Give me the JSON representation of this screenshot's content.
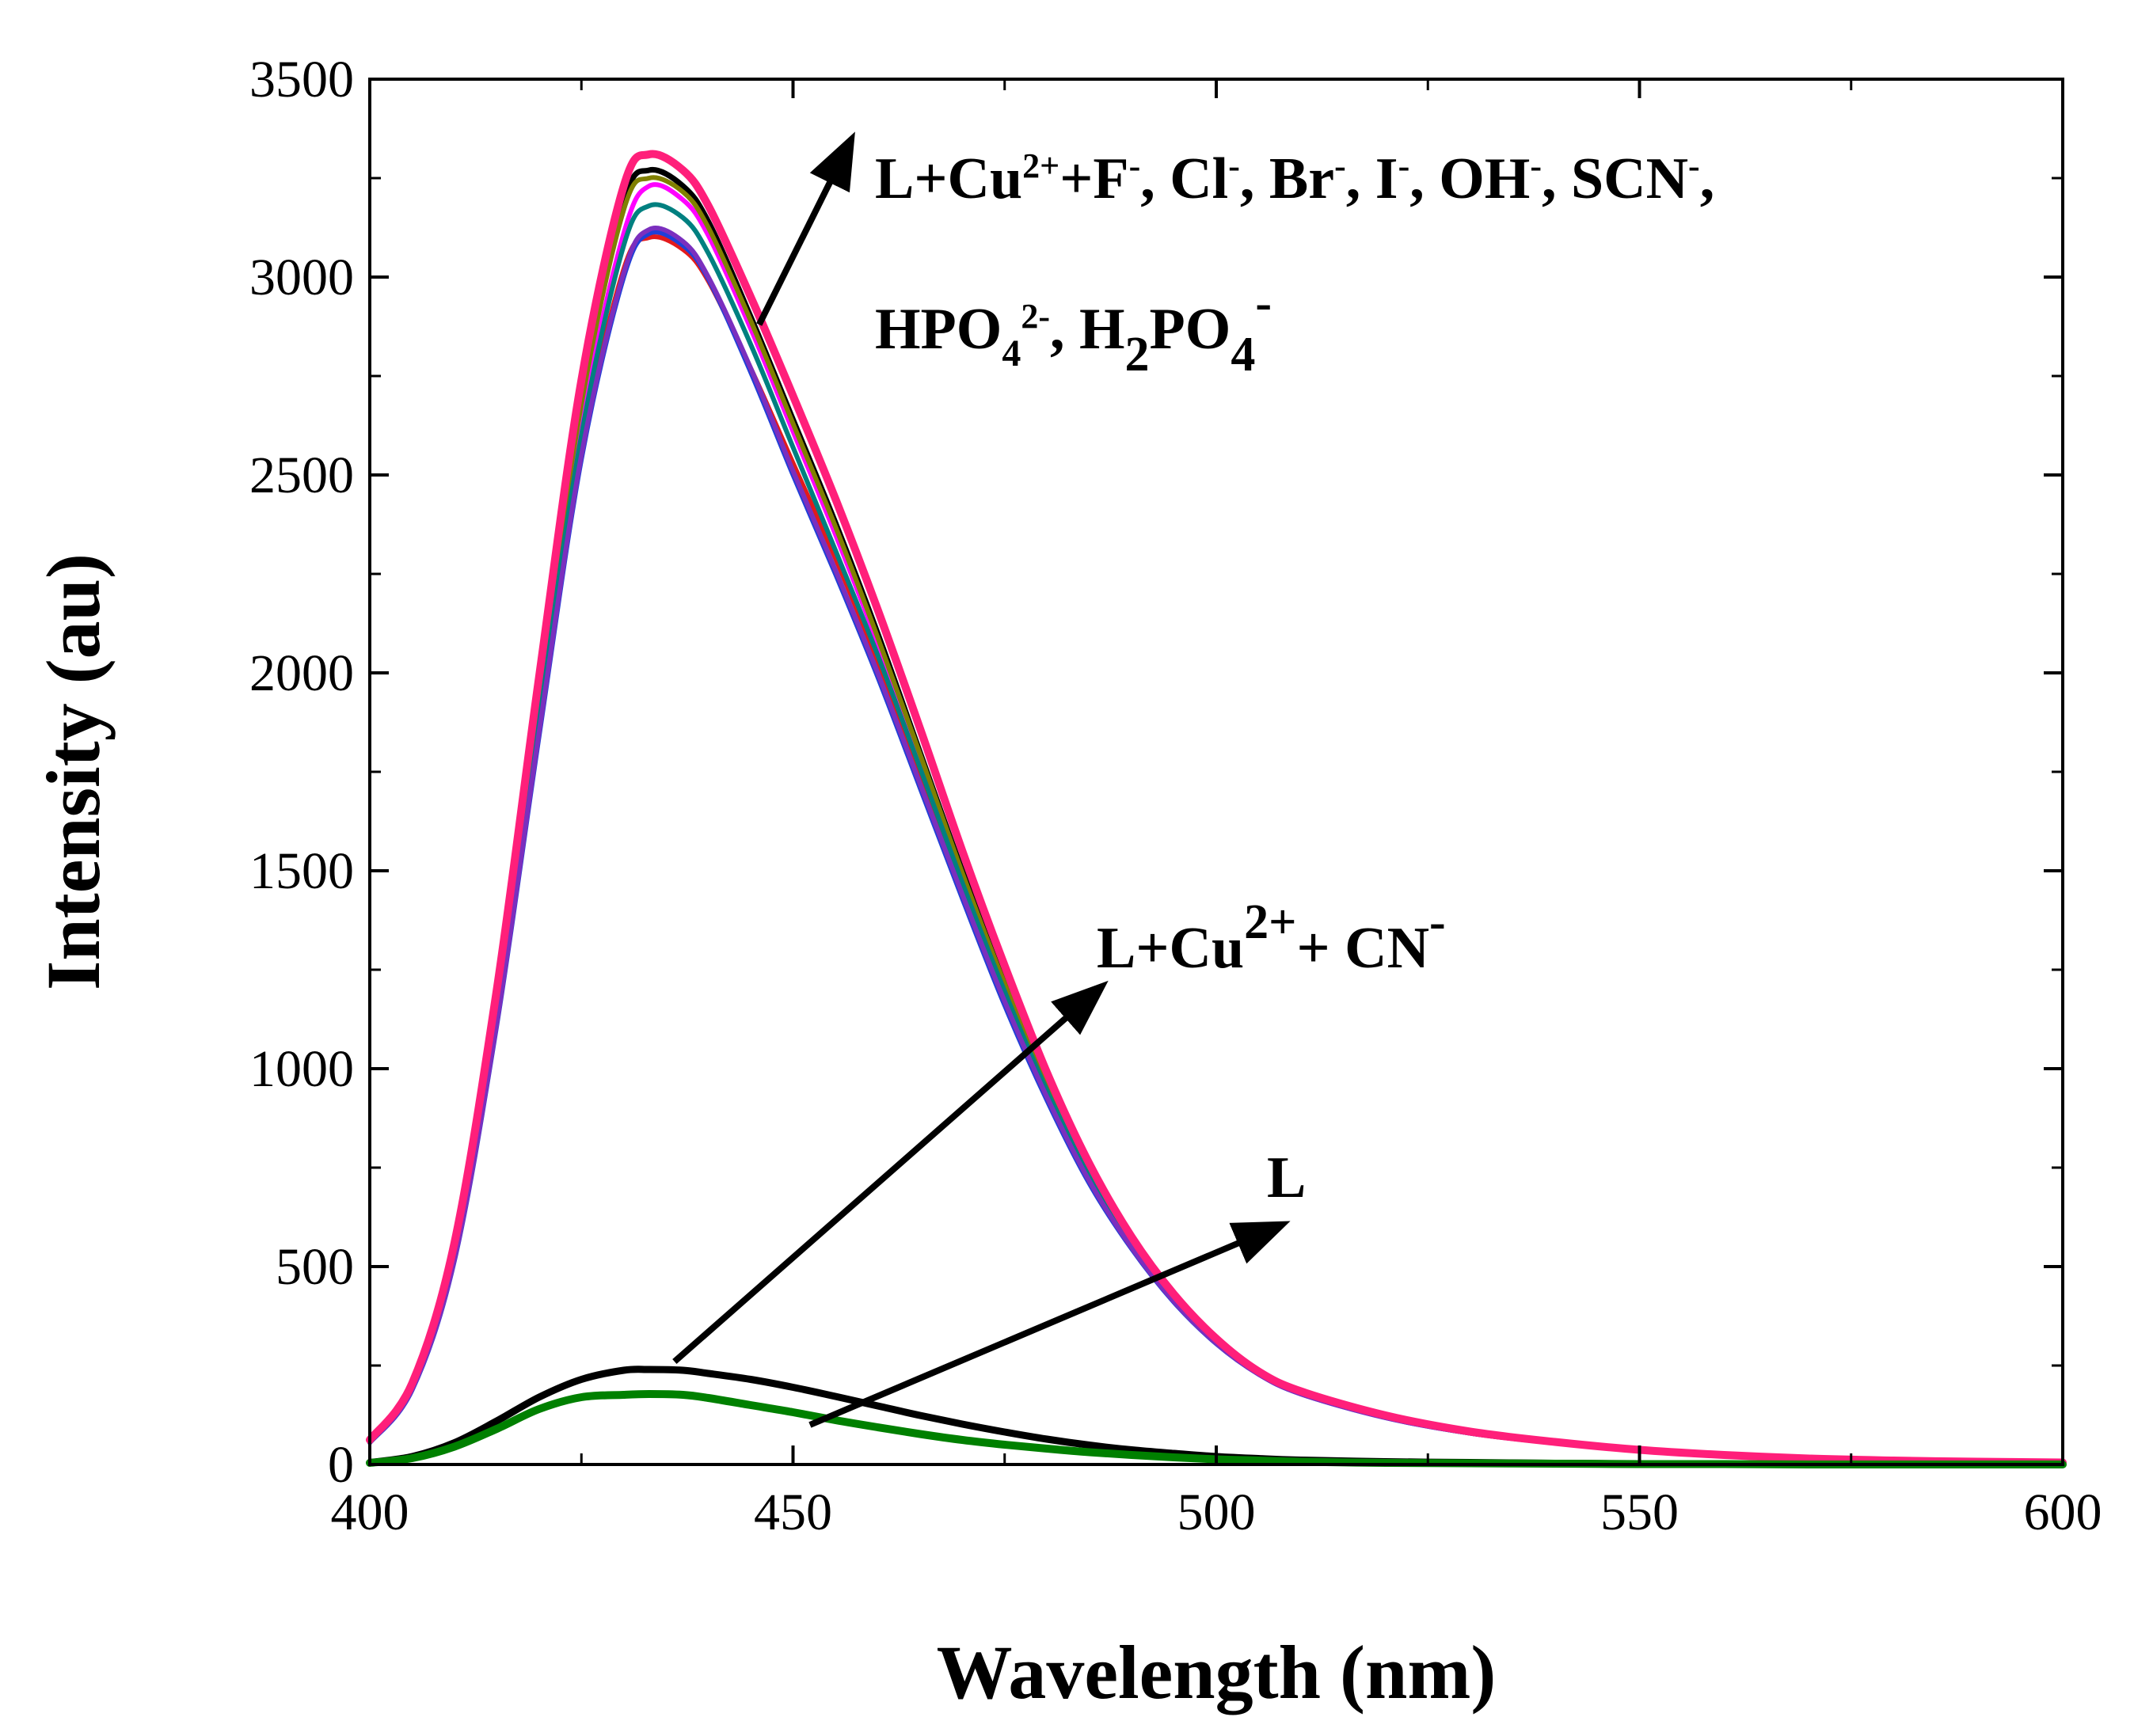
{
  "chart_data": {
    "type": "line",
    "title": "",
    "xlabel": "Wavelength (nm)",
    "ylabel": "Intensity (au)",
    "xlim": [
      400,
      600
    ],
    "ylim": [
      0,
      3500
    ],
    "xticks": [
      400,
      450,
      500,
      550,
      600
    ],
    "yticks": [
      0,
      500,
      1000,
      1500,
      2000,
      2500,
      3000,
      3500
    ],
    "series": [
      {
        "name": "L+Cu2++F-",
        "color": "#000000",
        "width": 7,
        "x": [
          400,
          405,
          410,
          415,
          420,
          425,
          430,
          433,
          437,
          440,
          445,
          450,
          455,
          460,
          465,
          470,
          475,
          480,
          485,
          490,
          495,
          500,
          505,
          510,
          520,
          530,
          540,
          550,
          560,
          570,
          580,
          590,
          600
        ],
        "y": [
          60,
          200,
          550,
          1180,
          1960,
          2700,
          3190,
          3270,
          3230,
          3140,
          2900,
          2640,
          2380,
          2100,
          1800,
          1500,
          1220,
          960,
          740,
          560,
          420,
          310,
          230,
          180,
          120,
          80,
          55,
          35,
          22,
          14,
          9,
          6,
          4
        ]
      },
      {
        "name": "L+Cu2++Cl-",
        "color": "#e31a1c",
        "width": 6,
        "x": [
          400,
          405,
          410,
          415,
          420,
          425,
          430,
          433,
          437,
          440,
          445,
          450,
          455,
          460,
          465,
          470,
          475,
          480,
          485,
          490,
          495,
          500,
          505,
          510,
          520,
          530,
          540,
          550,
          560,
          570,
          580,
          590,
          600
        ],
        "y": [
          55,
          190,
          520,
          1120,
          1860,
          2560,
          3020,
          3100,
          3070,
          2990,
          2770,
          2530,
          2290,
          2030,
          1750,
          1460,
          1190,
          940,
          730,
          560,
          420,
          310,
          230,
          180,
          120,
          80,
          55,
          35,
          22,
          14,
          9,
          6,
          4
        ]
      },
      {
        "name": "L+Cu2++Br-",
        "color": "#1f3fd8",
        "width": 6,
        "x": [
          400,
          405,
          410,
          415,
          420,
          425,
          430,
          433,
          437,
          440,
          445,
          450,
          455,
          460,
          465,
          470,
          475,
          480,
          485,
          490,
          495,
          500,
          505,
          510,
          520,
          530,
          540,
          550,
          560,
          570,
          580,
          590,
          600
        ],
        "y": [
          55,
          188,
          515,
          1110,
          1840,
          2540,
          3000,
          3110,
          3080,
          2995,
          2760,
          2500,
          2250,
          1990,
          1710,
          1430,
          1160,
          920,
          710,
          545,
          410,
          305,
          228,
          178,
          118,
          79,
          54,
          35,
          22,
          14,
          9,
          6,
          4
        ]
      },
      {
        "name": "L+Cu2++I-",
        "color": "#ff00ff",
        "width": 6,
        "x": [
          400,
          405,
          410,
          415,
          420,
          425,
          430,
          433,
          437,
          440,
          445,
          450,
          455,
          460,
          465,
          470,
          475,
          480,
          485,
          490,
          495,
          500,
          505,
          510,
          520,
          530,
          540,
          550,
          560,
          570,
          580,
          590,
          600
        ],
        "y": [
          58,
          195,
          535,
          1150,
          1910,
          2630,
          3110,
          3230,
          3195,
          3105,
          2870,
          2610,
          2350,
          2075,
          1780,
          1480,
          1200,
          950,
          735,
          555,
          418,
          308,
          229,
          179,
          119,
          80,
          55,
          35,
          22,
          14,
          9,
          6,
          4
        ]
      },
      {
        "name": "L+Cu2++OH-",
        "color": "#808000",
        "width": 6,
        "x": [
          400,
          405,
          410,
          415,
          420,
          425,
          430,
          433,
          437,
          440,
          445,
          450,
          455,
          460,
          465,
          470,
          475,
          480,
          485,
          490,
          495,
          500,
          505,
          510,
          520,
          530,
          540,
          550,
          560,
          570,
          580,
          590,
          600
        ],
        "y": [
          59,
          198,
          545,
          1170,
          1950,
          2680,
          3170,
          3250,
          3215,
          3125,
          2890,
          2630,
          2370,
          2090,
          1795,
          1495,
          1215,
          958,
          738,
          558,
          419,
          309,
          230,
          180,
          120,
          80,
          55,
          35,
          22,
          14,
          9,
          6,
          4
        ]
      },
      {
        "name": "L+Cu2++SCN-",
        "color": "#008080",
        "width": 6,
        "x": [
          400,
          405,
          410,
          415,
          420,
          425,
          430,
          433,
          437,
          440,
          445,
          450,
          455,
          460,
          465,
          470,
          475,
          480,
          485,
          490,
          495,
          500,
          505,
          510,
          520,
          530,
          540,
          550,
          560,
          570,
          580,
          590,
          600
        ],
        "y": [
          57,
          192,
          528,
          1135,
          1890,
          2600,
          3080,
          3180,
          3150,
          3060,
          2830,
          2570,
          2310,
          2045,
          1760,
          1470,
          1195,
          945,
          732,
          556,
          417,
          307,
          229,
          179,
          119,
          80,
          55,
          35,
          22,
          14,
          9,
          6,
          4
        ]
      },
      {
        "name": "L+Cu2++HPO4 2-",
        "color": "#7b2fbe",
        "width": 6,
        "x": [
          400,
          405,
          410,
          415,
          420,
          425,
          430,
          433,
          437,
          440,
          445,
          450,
          455,
          460,
          465,
          470,
          475,
          480,
          485,
          490,
          495,
          500,
          505,
          510,
          520,
          530,
          540,
          550,
          560,
          570,
          580,
          590,
          600
        ],
        "y": [
          56,
          190,
          518,
          1115,
          1850,
          2550,
          3010,
          3120,
          3090,
          3000,
          2770,
          2510,
          2260,
          2000,
          1720,
          1440,
          1170,
          928,
          716,
          548,
          412,
          306,
          228,
          178,
          118,
          79,
          54,
          35,
          22,
          14,
          9,
          6,
          4
        ]
      },
      {
        "name": "L+Cu2++H2PO4-",
        "color": "#ff1f7a",
        "width": 10,
        "x": [
          400,
          405,
          410,
          415,
          420,
          425,
          430,
          433,
          437,
          440,
          445,
          450,
          455,
          460,
          465,
          470,
          475,
          480,
          485,
          490,
          495,
          500,
          505,
          510,
          520,
          530,
          540,
          550,
          560,
          570,
          580,
          590,
          600
        ],
        "y": [
          62,
          205,
          560,
          1200,
          1990,
          2740,
          3230,
          3310,
          3270,
          3180,
          2950,
          2700,
          2440,
          2160,
          1860,
          1550,
          1260,
          990,
          760,
          575,
          430,
          318,
          235,
          185,
          124,
          83,
          57,
          37,
          24,
          15,
          10,
          7,
          5
        ]
      },
      {
        "name": "L+Cu2++CN-",
        "color": "#000000",
        "width": 9,
        "x": [
          400,
          405,
          410,
          415,
          420,
          425,
          430,
          433,
          437,
          440,
          445,
          450,
          455,
          460,
          465,
          470,
          475,
          480,
          485,
          490,
          495,
          500,
          505,
          510,
          520,
          530,
          540,
          550,
          560,
          570,
          580,
          590,
          600
        ],
        "y": [
          5,
          20,
          55,
          110,
          170,
          215,
          238,
          240,
          238,
          230,
          215,
          195,
          172,
          148,
          124,
          102,
          82,
          64,
          49,
          37,
          28,
          20,
          15,
          11,
          7,
          5,
          3,
          2,
          1,
          1,
          0,
          0,
          0
        ]
      },
      {
        "name": "L",
        "color": "#008000",
        "width": 10,
        "x": [
          400,
          405,
          410,
          415,
          420,
          425,
          430,
          433,
          437,
          440,
          445,
          450,
          455,
          460,
          465,
          470,
          475,
          480,
          485,
          490,
          495,
          500,
          505,
          510,
          520,
          530,
          540,
          550,
          560,
          570,
          580,
          590,
          600
        ],
        "y": [
          4,
          16,
          45,
          90,
          140,
          170,
          176,
          178,
          176,
          168,
          150,
          132,
          112,
          94,
          77,
          62,
          50,
          40,
          31,
          24,
          18,
          13,
          10,
          7,
          4,
          3,
          2,
          1,
          1,
          0,
          0,
          0,
          0
        ]
      }
    ],
    "annotations": [
      {
        "id": "upper",
        "parts": [
          [
            "L+Cu",
            "",
            ""
          ],
          [
            "2+",
            "sup",
            ""
          ],
          [
            "+F",
            "",
            ""
          ],
          [
            "-",
            "sup",
            ""
          ],
          [
            ", Cl",
            "",
            ""
          ],
          [
            "-",
            "sup",
            ""
          ],
          [
            ", Br",
            "",
            ""
          ],
          [
            "-",
            "sup",
            ""
          ],
          [
            ", I",
            "",
            ""
          ],
          [
            "-",
            "sup",
            ""
          ],
          [
            ", OH",
            "",
            ""
          ],
          [
            "-",
            "sup",
            ""
          ],
          [
            ", SCN",
            "",
            ""
          ],
          [
            "-",
            "sup",
            ""
          ],
          [
            ",",
            "",
            ""
          ]
        ],
        "line2": [
          [
            "HPO",
            "",
            ""
          ],
          [
            "4",
            "sub",
            ""
          ],
          [
            "2-",
            "sup",
            ""
          ],
          [
            ", H",
            "",
            ""
          ],
          [
            "2",
            "sub-big",
            ""
          ],
          [
            "PO",
            "",
            ""
          ],
          [
            "4",
            "sub-big",
            ""
          ],
          [
            "-",
            "sup-big",
            ""
          ]
        ],
        "arrow": {
          "from": [
            446,
            2880
          ],
          "to": [
            456,
            3310
          ]
        }
      },
      {
        "id": "cn",
        "parts": [
          [
            "L+Cu",
            "",
            ""
          ],
          [
            "2+",
            "sup-big",
            ""
          ],
          [
            "+ CN",
            "",
            ""
          ],
          [
            "-",
            "sup-big",
            ""
          ]
        ],
        "arrow": {
          "from": [
            436,
            260
          ],
          "to": [
            485,
            1180
          ]
        }
      },
      {
        "id": "l",
        "parts": [
          [
            "L",
            "",
            ""
          ]
        ],
        "arrow": {
          "from": [
            452,
            100
          ],
          "to": [
            506,
            590
          ]
        }
      }
    ]
  }
}
